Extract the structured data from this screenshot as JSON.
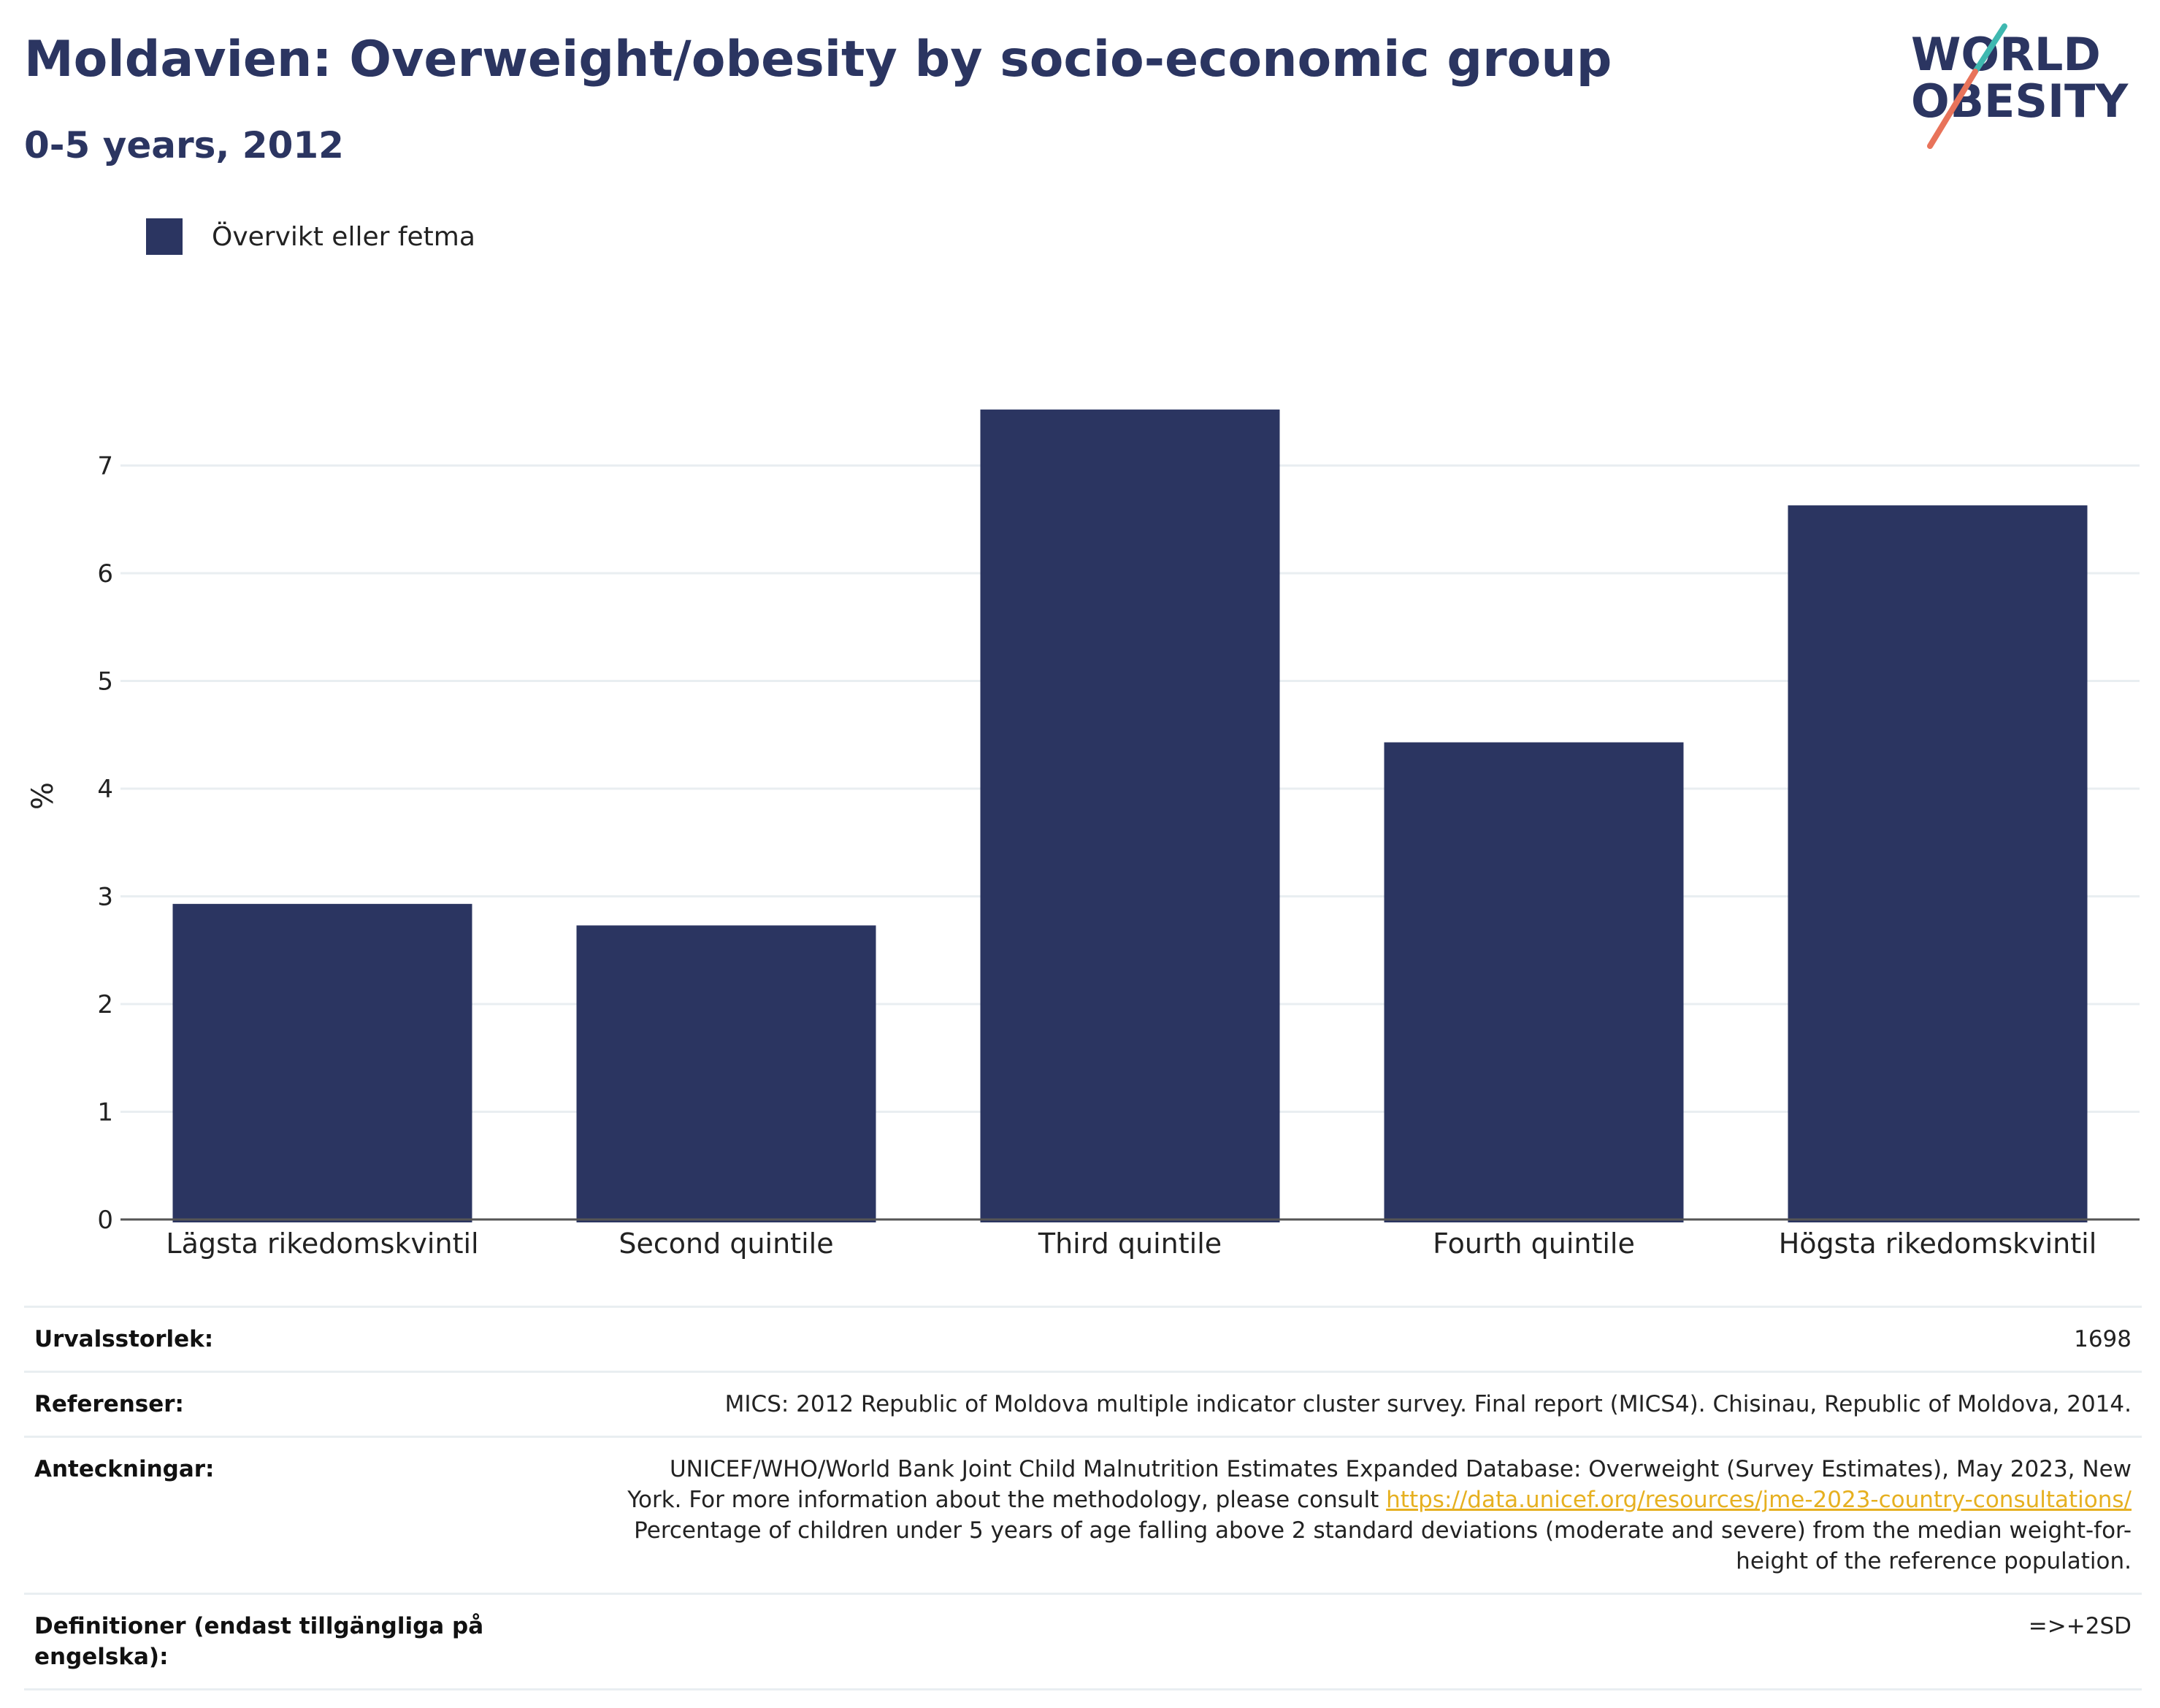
{
  "header": {
    "title": "Moldavien: Overweight/obesity by socio-economic group",
    "subtitle": "0-5 years, 2012"
  },
  "logo": {
    "line1": "WORLD",
    "line2": "OBESITY",
    "text_color": "#2b3561",
    "accent_teal": "#3fb8b0",
    "accent_coral": "#e8735a"
  },
  "colors": {
    "bar": "#2b3561",
    "grid": "#e9eef1",
    "axis": "#555555"
  },
  "chart_data": {
    "type": "bar",
    "categories": [
      "Lägsta rikedomskvintil",
      "Second quintile",
      "Third quintile",
      "Fourth quintile",
      "Högsta rikedomskvintil"
    ],
    "series": [
      {
        "name": "Övervikt eller fetma",
        "values": [
          2.93,
          2.73,
          7.52,
          4.43,
          6.63
        ]
      }
    ],
    "ylabel": "%",
    "yticks": [
      0,
      1,
      2,
      3,
      4,
      5,
      6,
      7
    ],
    "ylim": [
      0,
      7.6
    ],
    "grid": true,
    "legend_position": "top-left"
  },
  "table": {
    "sample_size_label": "Urvalsstorlek:",
    "sample_size_value": "1698",
    "references_label": "Referenser:",
    "references_value": "MICS: 2012 Republic of Moldova multiple indicator cluster survey. Final report (MICS4). Chisinau, Republic of Moldova, 2014.",
    "notes_label": "Anteckningar:",
    "notes_line1": "UNICEF/WHO/World Bank Joint Child Malnutrition Estimates Expanded Database: Overweight (Survey Estimates), May 2023, New",
    "notes_line2_prefix": "York. For more information about the methodology, please consult ",
    "notes_link": "https://data.unicef.org/resources/jme-2023-country-consultations/",
    "notes_line3": "Percentage of children under 5 years of age falling above 2 standard deviations (moderate and severe) from the median weight-for-",
    "notes_line4": "height of the reference population.",
    "definitions_label": "Definitioner (endast tillgängliga på engelska):",
    "definitions_value": "=>+2SD"
  }
}
